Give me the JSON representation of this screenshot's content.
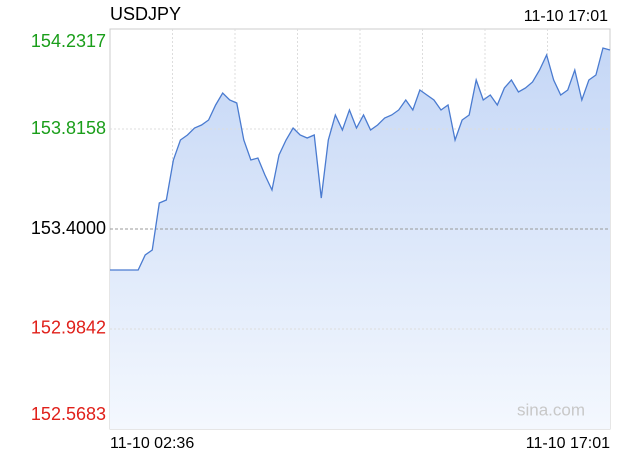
{
  "chart_data": {
    "type": "line",
    "title": "USDJPY",
    "updated": "11-10 17:01",
    "x_start_label": "11-10 02:36",
    "x_end_label": "11-10 17:01",
    "watermark": "sina.com",
    "color": "#4a7bd0",
    "up_color": "#1a9e1a",
    "down_color": "#e0201a",
    "base_value": 153.4,
    "ylim": [
      152.5683,
      154.2317
    ],
    "yticks": [
      152.5683,
      152.9842,
      {
        "value": 153.4,
        "label": "153.4000"
      },
      153.8158,
      154.2317
    ],
    "grid": true,
    "values": [
      153.2295,
      153.2295,
      153.2295,
      153.2295,
      153.2295,
      153.2919,
      153.3127,
      153.5081,
      153.5206,
      153.6869,
      153.7701,
      153.7909,
      153.82,
      153.8325,
      153.8533,
      153.9157,
      153.9656,
      153.9365,
      153.924,
      153.7701,
      153.6869,
      153.6952,
      153.6245,
      153.5622,
      153.7078,
      153.7701,
      153.82,
      153.7909,
      153.7784,
      153.7909,
      153.5289,
      153.7701,
      153.8741,
      153.8117,
      153.895,
      153.82,
      153.8741,
      153.8117,
      153.8325,
      153.8616,
      153.8741,
      153.895,
      153.9365,
      153.895,
      153.9781,
      153.9573,
      153.9365,
      153.895,
      153.9157,
      153.7701,
      153.8533,
      153.8741,
      154.0196,
      153.9365,
      153.9573,
      153.9157,
      153.9864,
      154.0196,
      153.9698,
      153.9864,
      154.0113,
      154.0612,
      154.1236,
      154.0196,
      153.9573,
      153.9781,
      154.0612,
      153.9365,
      154.0196,
      154.0404,
      154.1527,
      154.1444
    ]
  }
}
